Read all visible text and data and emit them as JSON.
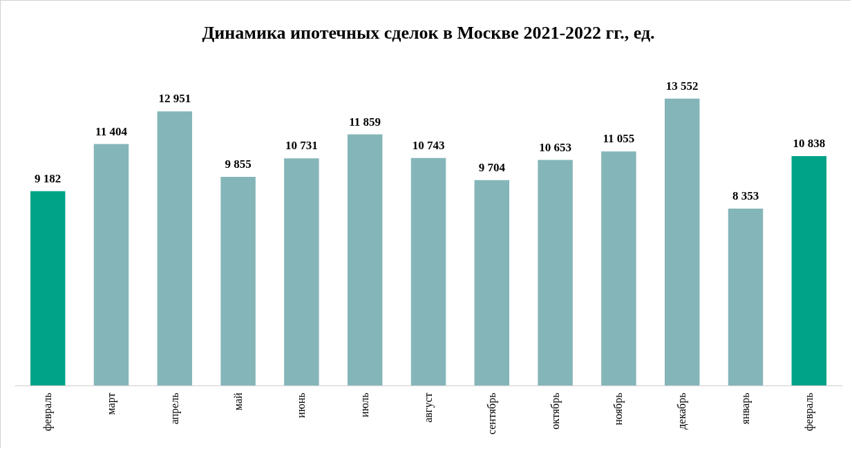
{
  "chart_data": {
    "type": "bar",
    "title": "Динамика ипотечных сделок в Москве 2021-2022 гг., ед.",
    "categories": [
      "февраль",
      "март",
      "апрель",
      "май",
      "июнь",
      "июль",
      "август",
      "сентябрь",
      "октябрь",
      "ноябрь",
      "декабрь",
      "январь",
      "февраль"
    ],
    "values": [
      9182,
      11404,
      12951,
      9855,
      10731,
      11859,
      10743,
      9704,
      10653,
      11055,
      13552,
      8353,
      10838
    ],
    "value_labels": [
      "9 182",
      "11 404",
      "12 951",
      "9 855",
      "10 731",
      "11 859",
      "10 743",
      "9 704",
      "10 653",
      "11 055",
      "13 552",
      "8 353",
      "10 838"
    ],
    "colors": [
      "#00a386",
      "#84b5b9",
      "#84b5b9",
      "#84b5b9",
      "#84b5b9",
      "#84b5b9",
      "#84b5b9",
      "#84b5b9",
      "#84b5b9",
      "#84b5b9",
      "#84b5b9",
      "#84b5b9",
      "#00a386"
    ]
  }
}
